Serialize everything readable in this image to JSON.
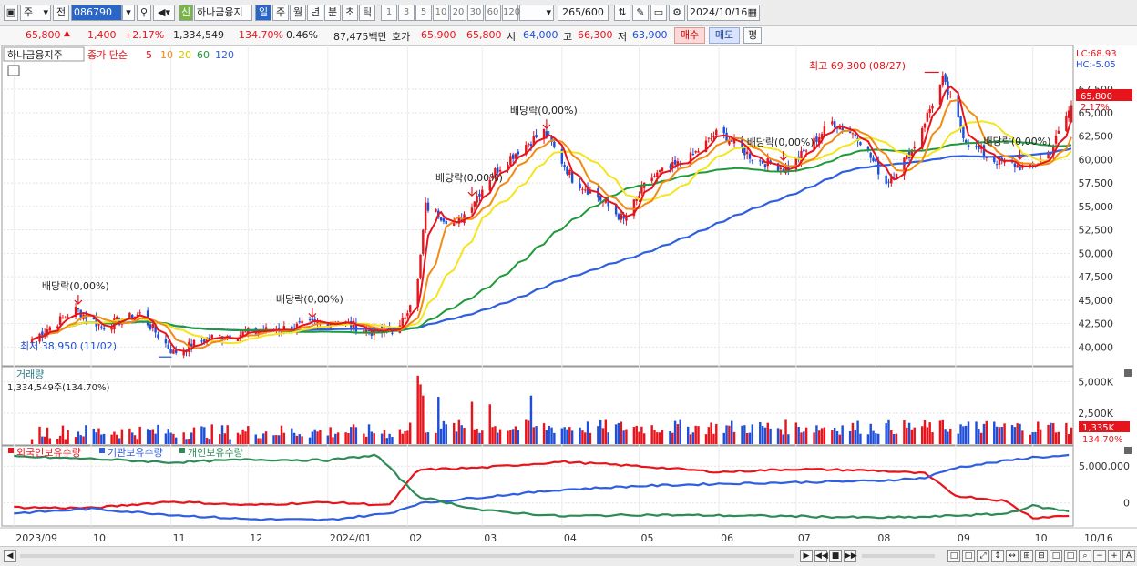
{
  "toolbar": {
    "period_select": "주",
    "prev_label": "전",
    "code": "086790",
    "stock_name": "하나금융지",
    "shin_badge": "신",
    "period_tabs": [
      "일",
      "주",
      "월",
      "년",
      "분",
      "초",
      "틱"
    ],
    "number_tabs": [
      "1",
      "3",
      "5",
      "10",
      "20",
      "30",
      "60",
      "120"
    ],
    "count_current": "265",
    "count_total": "/600",
    "date": "2024/10/16"
  },
  "quote": {
    "price": "65,800",
    "change": "1,400",
    "change_pct": "+2.17%",
    "volume": "1,334,549",
    "vol_ratio": "134.70%",
    "turnover": "0.46%",
    "amount": "87,475백만",
    "hoga_label": "호가",
    "ask": "65,900",
    "bid": "65,800",
    "open_label": "시",
    "open": "64,000",
    "high_label": "고",
    "high": "66,300",
    "low_label": "저",
    "low": "63,900",
    "buy_btn": "매수",
    "sell_btn": "매도",
    "eval_btn": "평"
  },
  "colors": {
    "up": "#e8141b",
    "down": "#1f4fd8",
    "ma5": "#e8141b",
    "ma10": "#f28a14",
    "ma20": "#f5e41e",
    "ma60": "#1e9a3a",
    "ma120": "#2f5fe0",
    "foreign": "#e8141b",
    "institution": "#2f5fe0",
    "individual": "#2e8b57"
  },
  "chart_data": [
    {
      "type": "candlestick",
      "title": "하나금융지주",
      "legend": {
        "price_label": "종가 단순",
        "ma_periods": [
          "5",
          "10",
          "20",
          "60",
          "120"
        ]
      },
      "y_ticks": [
        "67,500",
        "65,000",
        "62,500",
        "60,000",
        "57,500",
        "55,000",
        "52,500",
        "50,000",
        "47,500",
        "45,000",
        "42,500",
        "40,000"
      ],
      "ylim": [
        38000,
        71000
      ],
      "right_labels": {
        "lc": "LC:68.93",
        "hc": "HC:-5.05",
        "current": "65,800",
        "current_pct": "2.17%"
      },
      "annotations": {
        "max_label": "최고 69,300 (08/27)",
        "min_label": "최저 38,950 (11/02)",
        "dividend_label": "배당락(0,00%)",
        "dividend_dates": [
          "2023-09-26",
          "2023-12-26",
          "2024-02-26",
          "2024-03-26",
          "2024-06-26",
          "2024-09-26"
        ]
      },
      "x_labels": [
        "2023/09",
        "10",
        "11",
        "12",
        "2024/01",
        "02",
        "03",
        "04",
        "05",
        "06",
        "07",
        "08",
        "09",
        "10",
        "10/16"
      ],
      "anchors": [
        {
          "date": "2023-09-08",
          "close": 40800
        },
        {
          "date": "2023-09-25",
          "close": 44000
        },
        {
          "date": "2023-10-05",
          "close": 42200
        },
        {
          "date": "2023-10-20",
          "close": 43500
        },
        {
          "date": "2023-11-02",
          "close": 39400
        },
        {
          "date": "2023-11-16",
          "close": 41000
        },
        {
          "date": "2023-12-15",
          "close": 42000
        },
        {
          "date": "2024-01-05",
          "close": 42800
        },
        {
          "date": "2024-01-20",
          "close": 41500
        },
        {
          "date": "2024-01-29",
          "close": 42000
        },
        {
          "date": "2024-02-05",
          "close": 47000
        },
        {
          "date": "2024-02-08",
          "close": 55000
        },
        {
          "date": "2024-02-20",
          "close": 53000
        },
        {
          "date": "2024-03-05",
          "close": 58500
        },
        {
          "date": "2024-03-15",
          "close": 61000
        },
        {
          "date": "2024-03-25",
          "close": 63000
        },
        {
          "date": "2024-04-05",
          "close": 58000
        },
        {
          "date": "2024-04-15",
          "close": 56000
        },
        {
          "date": "2024-04-25",
          "close": 53500
        },
        {
          "date": "2024-05-05",
          "close": 58000
        },
        {
          "date": "2024-05-20",
          "close": 60000
        },
        {
          "date": "2024-06-01",
          "close": 63000
        },
        {
          "date": "2024-06-15",
          "close": 60000
        },
        {
          "date": "2024-06-28",
          "close": 59000
        },
        {
          "date": "2024-07-15",
          "close": 64000
        },
        {
          "date": "2024-07-25",
          "close": 62500
        },
        {
          "date": "2024-08-05",
          "close": 57500
        },
        {
          "date": "2024-08-15",
          "close": 61000
        },
        {
          "date": "2024-08-27",
          "close": 68500
        },
        {
          "date": "2024-09-05",
          "close": 62000
        },
        {
          "date": "2024-09-15",
          "close": 60000
        },
        {
          "date": "2024-09-30",
          "close": 59000
        },
        {
          "date": "2024-10-08",
          "close": 61000
        },
        {
          "date": "2024-10-16",
          "close": 65800
        }
      ]
    },
    {
      "type": "bar",
      "title": "거래량",
      "current_label": "1,334,549주(134.70%)",
      "y_ticks": [
        "5,000K",
        "2,500K"
      ],
      "ylim": [
        0,
        6000
      ],
      "right_labels": {
        "current": "1,335K",
        "pct": "134.70%"
      },
      "spikes_k": [
        {
          "date": "2024-02-05",
          "value": 5500
        },
        {
          "date": "2024-02-06",
          "value": 4800
        },
        {
          "date": "2024-02-07",
          "value": 3900
        },
        {
          "date": "2024-02-13",
          "value": 3800
        },
        {
          "date": "2024-03-20",
          "value": 3900
        },
        {
          "date": "2024-02-26",
          "value": 3400
        },
        {
          "date": "2024-03-04",
          "value": 3200
        }
      ]
    },
    {
      "type": "line",
      "series_names": [
        "외국인보유수량",
        "기관보유수량",
        "개인보유수량"
      ],
      "y_ticks": [
        "5,000,000",
        "0"
      ],
      "ylim": [
        -3000000,
        7500000
      ],
      "series": [
        {
          "name": "외국인보유수량",
          "color_key": "foreign",
          "points": [
            [
              "2023-09-01",
              -600000
            ],
            [
              "2023-10-01",
              -700000
            ],
            [
              "2023-11-01",
              200000
            ],
            [
              "2023-12-01",
              -300000
            ],
            [
              "2024-01-01",
              100000
            ],
            [
              "2024-01-25",
              -300000
            ],
            [
              "2024-02-05",
              4500000
            ],
            [
              "2024-03-01",
              4800000
            ],
            [
              "2024-04-01",
              5600000
            ],
            [
              "2024-05-01",
              5000000
            ],
            [
              "2024-06-01",
              4200000
            ],
            [
              "2024-07-01",
              4600000
            ],
            [
              "2024-08-01",
              4400000
            ],
            [
              "2024-08-20",
              4000000
            ],
            [
              "2024-09-01",
              1000000
            ],
            [
              "2024-09-20",
              300000
            ],
            [
              "2024-10-01",
              -2000000
            ],
            [
              "2024-10-16",
              -1700000
            ]
          ]
        },
        {
          "name": "기관보유수량",
          "color_key": "institution",
          "points": [
            [
              "2023-09-01",
              -1400000
            ],
            [
              "2023-10-01",
              -800000
            ],
            [
              "2023-11-01",
              -1600000
            ],
            [
              "2023-12-01",
              -2200000
            ],
            [
              "2024-01-01",
              -2300000
            ],
            [
              "2024-01-25",
              -1400000
            ],
            [
              "2024-02-05",
              -100000
            ],
            [
              "2024-03-01",
              800000
            ],
            [
              "2024-04-01",
              1800000
            ],
            [
              "2024-05-01",
              2300000
            ],
            [
              "2024-06-01",
              2600000
            ],
            [
              "2024-07-01",
              2800000
            ],
            [
              "2024-08-01",
              3000000
            ],
            [
              "2024-08-20",
              3400000
            ],
            [
              "2024-09-01",
              4800000
            ],
            [
              "2024-10-01",
              6200000
            ],
            [
              "2024-10-16",
              6400000
            ]
          ]
        },
        {
          "name": "개인보유수량",
          "color_key": "individual",
          "points": [
            [
              "2023-09-01",
              6300000
            ],
            [
              "2023-10-01",
              6000000
            ],
            [
              "2023-11-01",
              5500000
            ],
            [
              "2023-12-01",
              5900000
            ],
            [
              "2024-01-01",
              5800000
            ],
            [
              "2024-01-20",
              6500000
            ],
            [
              "2024-02-05",
              900000
            ],
            [
              "2024-03-01",
              -1000000
            ],
            [
              "2024-04-01",
              -1800000
            ],
            [
              "2024-05-01",
              -1600000
            ],
            [
              "2024-06-01",
              -1700000
            ],
            [
              "2024-07-01",
              -1800000
            ],
            [
              "2024-08-01",
              -2000000
            ],
            [
              "2024-08-20",
              -1900000
            ],
            [
              "2024-09-01",
              -1700000
            ],
            [
              "2024-09-20",
              -1500000
            ],
            [
              "2024-10-01",
              -400000
            ],
            [
              "2024-10-16",
              -1200000
            ]
          ]
        }
      ]
    }
  ]
}
